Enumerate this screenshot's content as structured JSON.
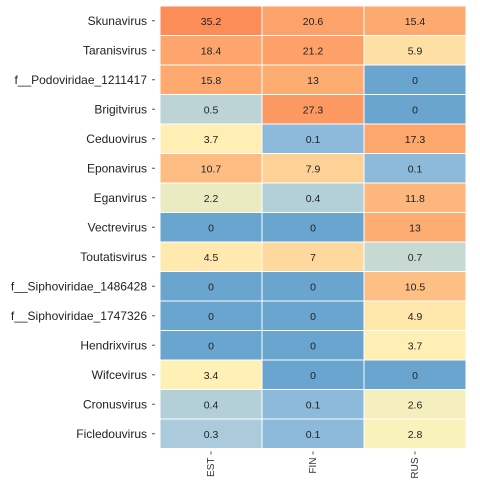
{
  "chart_data": {
    "type": "heatmap",
    "columns": [
      "EST",
      "FIN",
      "RUS"
    ],
    "rows": [
      "Skunavirus",
      "Taranisvirus",
      "f__Podoviridae_1211417",
      "Brigitvirus",
      "Ceduovirus",
      "Eponavirus",
      "Eganvirus",
      "Vectrevirus",
      "Toutatisvirus",
      "f__Siphoviridae_1486428",
      "f__Siphoviridae_1747326",
      "Hendrixvirus",
      "Wifcevirus",
      "Cronusvirus",
      "Ficledouvirus"
    ],
    "values": [
      [
        35.2,
        20.6,
        15.4
      ],
      [
        18.4,
        21.2,
        5.9
      ],
      [
        15.8,
        13,
        0
      ],
      [
        0.5,
        27.3,
        0
      ],
      [
        3.7,
        0.1,
        17.3
      ],
      [
        10.7,
        7.9,
        0.1
      ],
      [
        2.2,
        0.4,
        11.8
      ],
      [
        0,
        0,
        13
      ],
      [
        4.5,
        7,
        0.7
      ],
      [
        0,
        0,
        10.5
      ],
      [
        0,
        0,
        4.9
      ],
      [
        0,
        0,
        3.7
      ],
      [
        3.4,
        0,
        0
      ],
      [
        0.4,
        0.1,
        2.6
      ],
      [
        0.3,
        0.1,
        2.8
      ]
    ],
    "colors": {
      "zero": "#6aa5cf",
      "very_low": "#9ec5e0",
      "low": "#c4d8d3",
      "mid": "#fff4b9",
      "high": "#fdad72",
      "max": "#fc8d59"
    },
    "grid": false,
    "legend": "none"
  }
}
